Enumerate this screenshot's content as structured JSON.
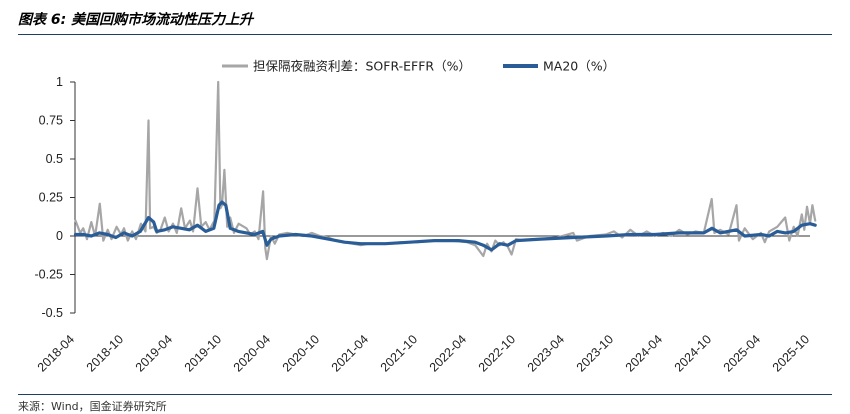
{
  "figure": {
    "title": "图表 6:  美国回购市场流动性压力上升",
    "source": "来源：Wind，国金证券研究所"
  },
  "chart_data": {
    "type": "line",
    "title": "",
    "xlabel": "",
    "ylabel": "",
    "ylim": [
      -0.5,
      1
    ],
    "y_ticks": [
      1,
      0.75,
      0.5,
      0.25,
      0,
      -0.25,
      -0.5
    ],
    "y_tick_labels": [
      "1",
      "0.75",
      "0.5",
      "0.25",
      "0",
      "-0.25",
      "-0.5"
    ],
    "x_ticks": [
      "2018-04",
      "2018-10",
      "2019-04",
      "2019-10",
      "2020-04",
      "2020-10",
      "2021-04",
      "2021-10",
      "2022-04",
      "2022-10",
      "2023-04",
      "2023-10",
      "2024-04",
      "2024-10",
      "2025-04",
      "2025-10"
    ],
    "x_range": [
      "2018-04",
      "2025-10"
    ],
    "legend_position": "top-center",
    "grid": false,
    "series": [
      {
        "name": "担保隔夜融资利差：SOFR-EFFR（%）",
        "color": "#a6a6a6",
        "points": [
          [
            "2018-04-03",
            0.1
          ],
          [
            "2018-04-20",
            0.02
          ],
          [
            "2018-05-01",
            0.05
          ],
          [
            "2018-05-15",
            -0.02
          ],
          [
            "2018-06-01",
            0.09
          ],
          [
            "2018-06-15",
            0.0
          ],
          [
            "2018-07-02",
            0.21
          ],
          [
            "2018-07-15",
            -0.03
          ],
          [
            "2018-08-01",
            0.04
          ],
          [
            "2018-08-15",
            -0.02
          ],
          [
            "2018-09-04",
            0.06
          ],
          [
            "2018-09-20",
            0.01
          ],
          [
            "2018-10-01",
            0.05
          ],
          [
            "2018-10-15",
            -0.03
          ],
          [
            "2018-11-01",
            0.03
          ],
          [
            "2018-11-15",
            -0.02
          ],
          [
            "2018-12-03",
            0.08
          ],
          [
            "2018-12-20",
            0.03
          ],
          [
            "2018-12-31",
            0.75
          ],
          [
            "2019-01-07",
            0.05
          ],
          [
            "2019-01-20",
            0.06
          ],
          [
            "2019-02-01",
            0.02
          ],
          [
            "2019-02-15",
            0.04
          ],
          [
            "2019-03-01",
            0.12
          ],
          [
            "2019-03-15",
            0.03
          ],
          [
            "2019-04-01",
            0.08
          ],
          [
            "2019-04-15",
            0.02
          ],
          [
            "2019-05-01",
            0.18
          ],
          [
            "2019-05-15",
            0.05
          ],
          [
            "2019-06-03",
            0.1
          ],
          [
            "2019-06-15",
            0.03
          ],
          [
            "2019-07-01",
            0.31
          ],
          [
            "2019-07-15",
            0.06
          ],
          [
            "2019-08-01",
            0.09
          ],
          [
            "2019-08-15",
            0.04
          ],
          [
            "2019-09-03",
            0.1
          ],
          [
            "2019-09-17",
            1.0
          ],
          [
            "2019-09-25",
            0.18
          ],
          [
            "2019-10-01",
            0.2
          ],
          [
            "2019-10-10",
            0.43
          ],
          [
            "2019-10-20",
            0.06
          ],
          [
            "2019-11-01",
            0.12
          ],
          [
            "2019-11-15",
            0.02
          ],
          [
            "2019-12-02",
            0.08
          ],
          [
            "2019-12-31",
            0.05
          ],
          [
            "2020-01-15",
            0.01
          ],
          [
            "2020-02-01",
            0.03
          ],
          [
            "2020-02-15",
            -0.02
          ],
          [
            "2020-03-02",
            0.29
          ],
          [
            "2020-03-10",
            -0.08
          ],
          [
            "2020-03-16",
            -0.15
          ],
          [
            "2020-03-31",
            0.0
          ],
          [
            "2020-04-15",
            -0.05
          ],
          [
            "2020-05-01",
            0.01
          ],
          [
            "2020-06-01",
            0.02
          ],
          [
            "2020-07-01",
            0.01
          ],
          [
            "2020-08-01",
            0.0
          ],
          [
            "2020-09-01",
            0.02
          ],
          [
            "2020-10-01",
            0.0
          ],
          [
            "2020-11-01",
            -0.01
          ],
          [
            "2020-12-01",
            -0.03
          ],
          [
            "2021-01-01",
            -0.04
          ],
          [
            "2021-02-01",
            -0.05
          ],
          [
            "2021-03-01",
            -0.06
          ],
          [
            "2021-04-01",
            -0.05
          ],
          [
            "2021-06-01",
            -0.05
          ],
          [
            "2021-08-01",
            -0.04
          ],
          [
            "2021-10-01",
            -0.04
          ],
          [
            "2021-12-01",
            -0.03
          ],
          [
            "2022-02-01",
            -0.03
          ],
          [
            "2022-04-01",
            -0.04
          ],
          [
            "2022-05-01",
            -0.06
          ],
          [
            "2022-06-01",
            -0.13
          ],
          [
            "2022-06-15",
            -0.05
          ],
          [
            "2022-07-01",
            -0.1
          ],
          [
            "2022-07-15",
            -0.03
          ],
          [
            "2022-08-01",
            -0.06
          ],
          [
            "2022-08-15",
            -0.04
          ],
          [
            "2022-09-01",
            -0.07
          ],
          [
            "2022-09-15",
            -0.12
          ],
          [
            "2022-10-01",
            -0.02
          ],
          [
            "2022-11-01",
            -0.03
          ],
          [
            "2022-12-01",
            -0.02
          ],
          [
            "2023-01-01",
            -0.02
          ],
          [
            "2023-03-01",
            -0.01
          ],
          [
            "2023-05-01",
            0.02
          ],
          [
            "2023-05-15",
            -0.03
          ],
          [
            "2023-07-01",
            0.0
          ],
          [
            "2023-09-01",
            0.01
          ],
          [
            "2023-10-01",
            0.03
          ],
          [
            "2023-11-01",
            -0.01
          ],
          [
            "2023-12-01",
            0.04
          ],
          [
            "2024-01-01",
            0.0
          ],
          [
            "2024-02-01",
            0.03
          ],
          [
            "2024-03-01",
            0.0
          ],
          [
            "2024-04-01",
            0.02
          ],
          [
            "2024-05-01",
            0.0
          ],
          [
            "2024-06-01",
            0.04
          ],
          [
            "2024-07-01",
            0.01
          ],
          [
            "2024-08-01",
            0.03
          ],
          [
            "2024-09-01",
            0.02
          ],
          [
            "2024-09-30",
            0.24
          ],
          [
            "2024-10-10",
            0.02
          ],
          [
            "2024-11-01",
            0.04
          ],
          [
            "2024-12-02",
            0.01
          ],
          [
            "2024-12-31",
            0.2
          ],
          [
            "2025-01-10",
            -0.03
          ],
          [
            "2025-02-01",
            0.05
          ],
          [
            "2025-03-01",
            -0.02
          ],
          [
            "2025-04-01",
            0.02
          ],
          [
            "2025-04-15",
            -0.04
          ],
          [
            "2025-05-01",
            0.03
          ],
          [
            "2025-06-01",
            0.06
          ],
          [
            "2025-06-30",
            0.12
          ],
          [
            "2025-07-15",
            -0.03
          ],
          [
            "2025-08-01",
            0.06
          ],
          [
            "2025-08-15",
            0.0
          ],
          [
            "2025-09-01",
            0.14
          ],
          [
            "2025-09-10",
            0.04
          ],
          [
            "2025-09-20",
            0.19
          ],
          [
            "2025-10-01",
            0.08
          ],
          [
            "2025-10-10",
            0.2
          ],
          [
            "2025-10-20",
            0.1
          ]
        ]
      },
      {
        "name": "MA20（%）",
        "color": "#2a5d97",
        "points": [
          [
            "2018-04-03",
            0.01
          ],
          [
            "2018-05-01",
            0.01
          ],
          [
            "2018-06-01",
            0.0
          ],
          [
            "2018-07-01",
            0.02
          ],
          [
            "2018-08-01",
            0.01
          ],
          [
            "2018-09-01",
            -0.01
          ],
          [
            "2018-10-01",
            0.02
          ],
          [
            "2018-11-01",
            0.0
          ],
          [
            "2018-12-01",
            0.03
          ],
          [
            "2019-01-01",
            0.12
          ],
          [
            "2019-01-20",
            0.09
          ],
          [
            "2019-02-01",
            0.03
          ],
          [
            "2019-03-01",
            0.04
          ],
          [
            "2019-04-01",
            0.06
          ],
          [
            "2019-05-01",
            0.05
          ],
          [
            "2019-06-01",
            0.04
          ],
          [
            "2019-07-01",
            0.07
          ],
          [
            "2019-08-01",
            0.03
          ],
          [
            "2019-09-01",
            0.05
          ],
          [
            "2019-09-20",
            0.2
          ],
          [
            "2019-10-01",
            0.22
          ],
          [
            "2019-10-15",
            0.2
          ],
          [
            "2019-11-01",
            0.05
          ],
          [
            "2019-12-01",
            0.03
          ],
          [
            "2020-01-01",
            0.02
          ],
          [
            "2020-02-01",
            0.01
          ],
          [
            "2020-03-01",
            0.03
          ],
          [
            "2020-03-16",
            -0.06
          ],
          [
            "2020-04-01",
            -0.02
          ],
          [
            "2020-05-01",
            0.0
          ],
          [
            "2020-07-01",
            0.01
          ],
          [
            "2020-09-01",
            0.0
          ],
          [
            "2020-11-01",
            -0.02
          ],
          [
            "2021-01-01",
            -0.04
          ],
          [
            "2021-03-01",
            -0.05
          ],
          [
            "2021-06-01",
            -0.05
          ],
          [
            "2021-09-01",
            -0.04
          ],
          [
            "2021-12-01",
            -0.03
          ],
          [
            "2022-03-01",
            -0.03
          ],
          [
            "2022-05-01",
            -0.04
          ],
          [
            "2022-06-01",
            -0.06
          ],
          [
            "2022-07-01",
            -0.09
          ],
          [
            "2022-08-01",
            -0.05
          ],
          [
            "2022-09-01",
            -0.06
          ],
          [
            "2022-10-01",
            -0.03
          ],
          [
            "2023-01-01",
            -0.02
          ],
          [
            "2023-05-01",
            -0.01
          ],
          [
            "2023-09-01",
            0.0
          ],
          [
            "2023-12-01",
            0.01
          ],
          [
            "2024-03-01",
            0.01
          ],
          [
            "2024-06-01",
            0.02
          ],
          [
            "2024-09-01",
            0.02
          ],
          [
            "2024-10-01",
            0.05
          ],
          [
            "2024-11-01",
            0.02
          ],
          [
            "2025-01-01",
            0.04
          ],
          [
            "2025-02-01",
            0.0
          ],
          [
            "2025-04-01",
            0.01
          ],
          [
            "2025-05-01",
            0.0
          ],
          [
            "2025-06-01",
            0.03
          ],
          [
            "2025-07-01",
            0.02
          ],
          [
            "2025-08-01",
            0.03
          ],
          [
            "2025-09-01",
            0.07
          ],
          [
            "2025-10-01",
            0.08
          ],
          [
            "2025-10-20",
            0.07
          ]
        ]
      }
    ]
  }
}
